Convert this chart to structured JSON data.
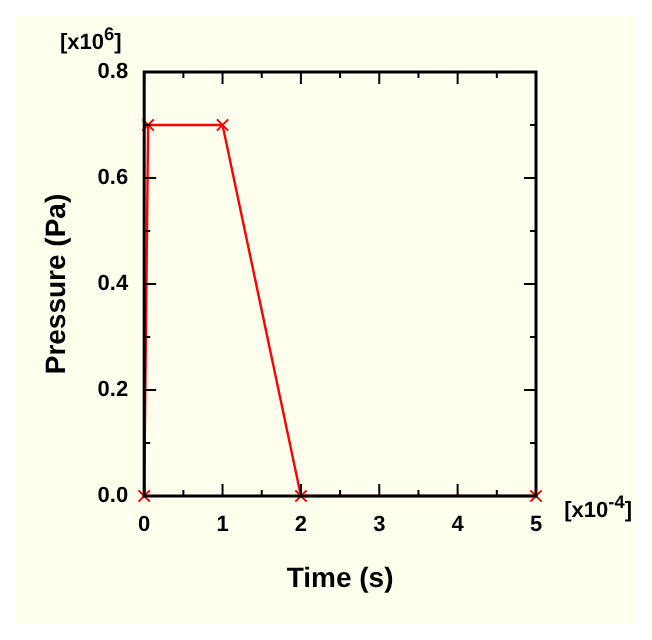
{
  "chart_data": {
    "type": "line",
    "xlabel": "Time (s)",
    "ylabel": "Pressure (Pa)",
    "x": [
      0,
      0.05,
      1,
      2,
      5
    ],
    "series": [
      {
        "color": "#ff0000",
        "values": [
          0,
          0.7,
          0.7,
          0,
          0
        ]
      }
    ],
    "xlim": [
      0,
      5
    ],
    "xticks": [
      0,
      1,
      2,
      3,
      4,
      5
    ],
    "ylim": [
      0,
      0.8
    ],
    "yticks": [
      {
        "value": 0,
        "label": "0.0"
      },
      0.2,
      0.4,
      0.6,
      0.8
    ],
    "grid": false,
    "legend": false,
    "marker": "cross",
    "line_style": "solid",
    "annotations": [
      "[x10$^{-4}$]",
      "[x10$^{6}$]"
    ]
  }
}
